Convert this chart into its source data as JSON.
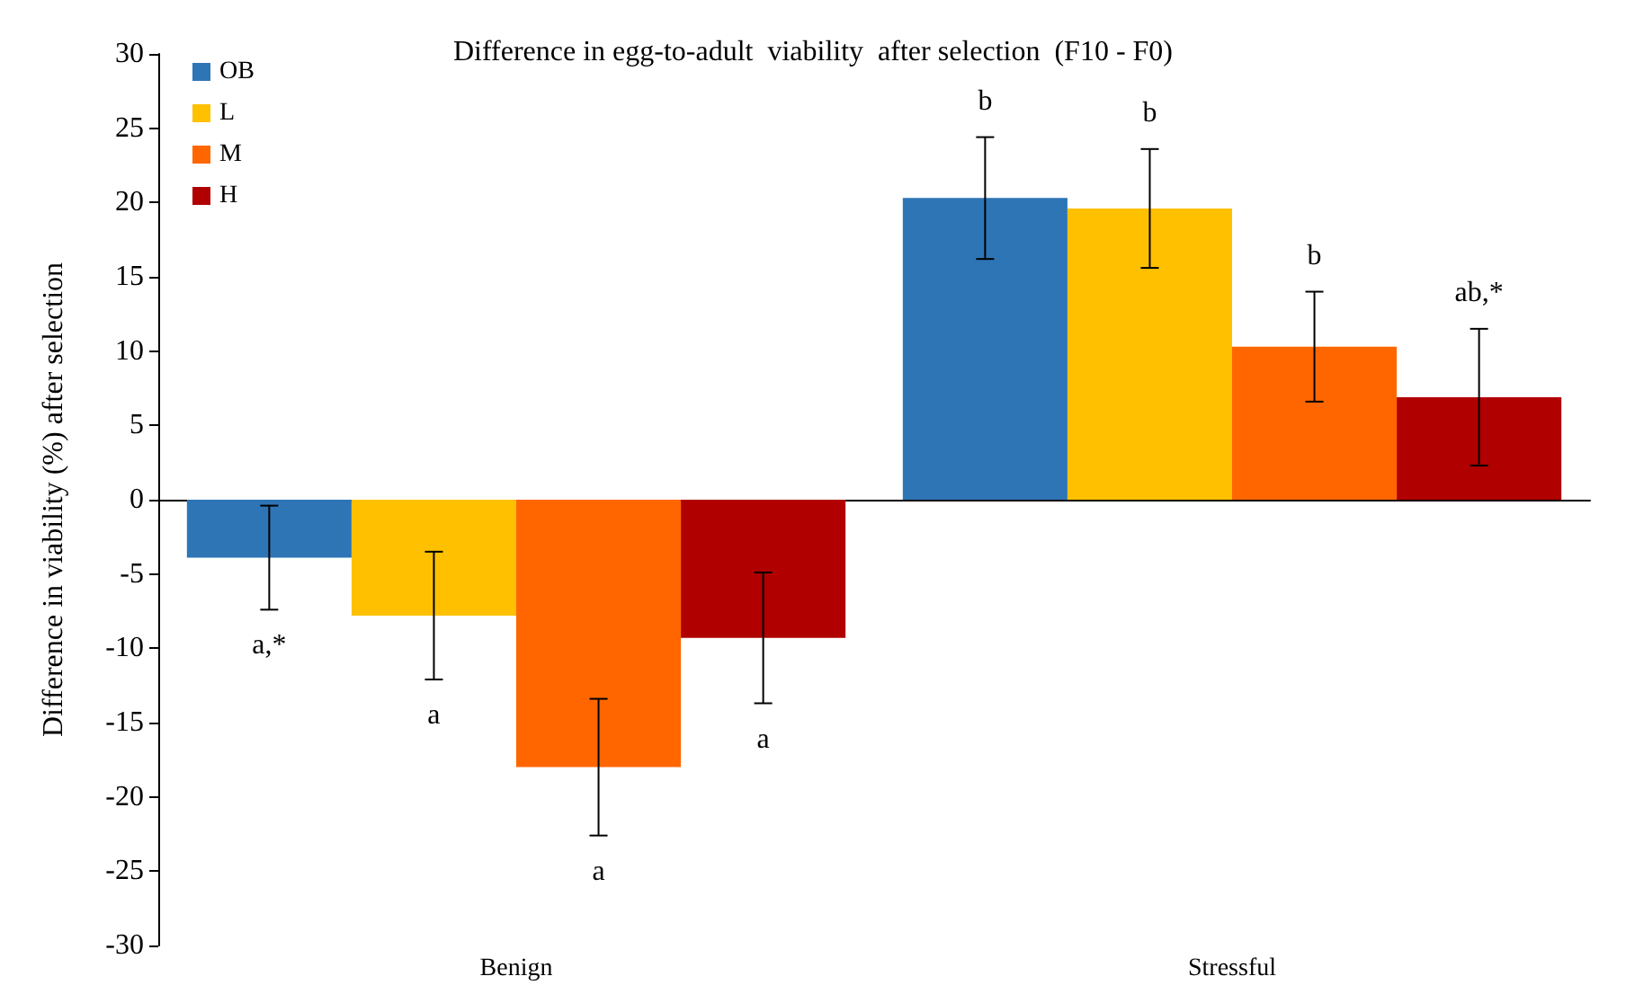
{
  "chart_data": {
    "type": "bar",
    "title": "Difference in egg-to-adult  viability  after selection  (F10 - F0)",
    "ylabel": "Difference in viability (%) after selection",
    "categories": [
      "Benign",
      "Stressful"
    ],
    "series": [
      {
        "name": "OB",
        "color": "#2e75b6",
        "values": [
          -3.9,
          20.3
        ],
        "errors": [
          3.5,
          4.1
        ],
        "value_labels": [
          "a,*",
          "b"
        ]
      },
      {
        "name": "L",
        "color": "#ffc000",
        "values": [
          -7.8,
          19.6
        ],
        "errors": [
          4.3,
          4.0
        ],
        "value_labels": [
          "a",
          "b"
        ]
      },
      {
        "name": "M",
        "color": "#ff6600",
        "values": [
          -18.0,
          10.3
        ],
        "errors": [
          4.6,
          3.7
        ],
        "value_labels": [
          "a",
          "b"
        ]
      },
      {
        "name": "H",
        "color": "#b00000",
        "values": [
          -9.3,
          6.9
        ],
        "errors": [
          4.4,
          4.6
        ],
        "value_labels": [
          "a",
          "ab,*"
        ]
      }
    ],
    "ylim": [
      -30,
      30
    ],
    "yticks": [
      -30,
      -25,
      -20,
      -15,
      -10,
      -5,
      0,
      5,
      10,
      15,
      20,
      25,
      30
    ],
    "legend": "top left"
  }
}
